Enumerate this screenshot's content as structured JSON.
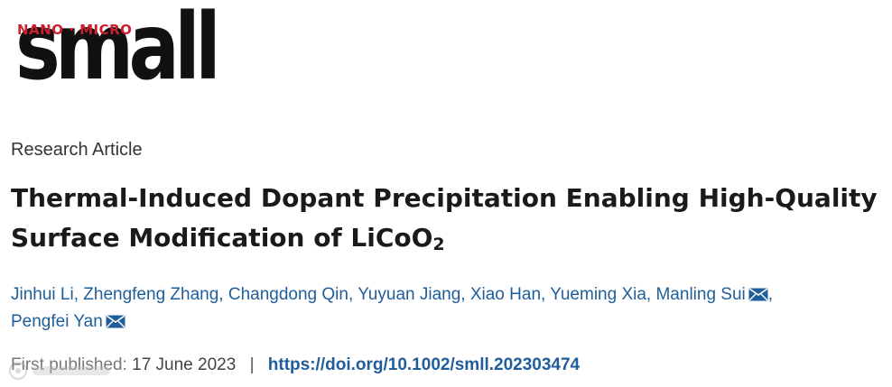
{
  "logo": {
    "top_text": "NANO · MICRO",
    "main_text": "small",
    "accent_color": "#cc1f2f"
  },
  "article_type": "Research Article",
  "title": {
    "main": "Thermal-Induced Dopant Precipitation Enabling High-Quality Surface Modification of LiCoO",
    "subscript": "2"
  },
  "authors": [
    {
      "name": "Jinhui Li",
      "email_icon": false
    },
    {
      "name": "Zhengfeng Zhang",
      "email_icon": false
    },
    {
      "name": "Changdong Qin",
      "email_icon": false
    },
    {
      "name": "Yuyuan Jiang",
      "email_icon": false
    },
    {
      "name": "Xiao Han",
      "email_icon": false
    },
    {
      "name": "Yueming Xia",
      "email_icon": false
    },
    {
      "name": "Manling Sui",
      "email_icon": true
    },
    {
      "name": "Pengfei Yan",
      "email_icon": true
    }
  ],
  "publication": {
    "label": "First published:",
    "date": "17 June 2023",
    "divider": "|",
    "doi": "https://doi.org/10.1002/smll.202303474"
  },
  "colors": {
    "link": "#1f5e9a",
    "title": "#1a1a1a"
  }
}
